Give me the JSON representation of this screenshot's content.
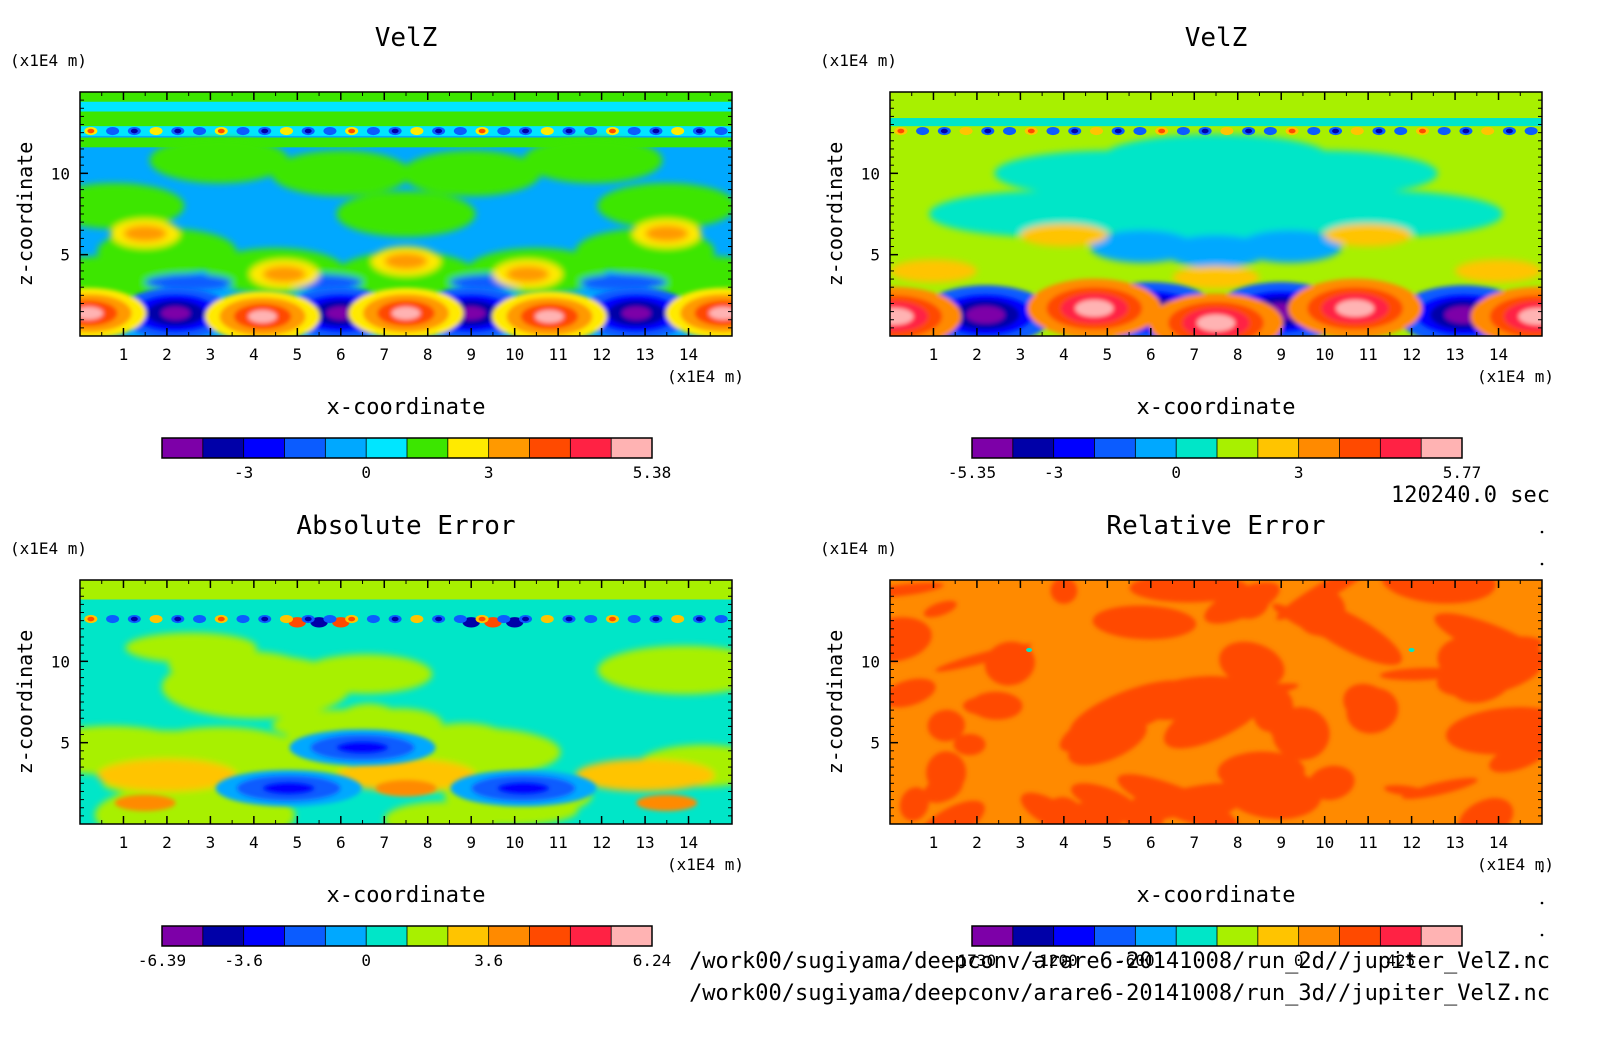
{
  "time_label": "120240.0 sec",
  "file_paths": [
    "/work00/sugiyama/deepconv/arare6-20141008/run_2d//jupiter_VelZ.nc",
    "/work00/sugiyama/deepconv/arare6-20141008/run_3d//jupiter_VelZ.nc"
  ],
  "chart_data": [
    {
      "type": "heatmap",
      "title": "VelZ",
      "xlabel": "x-coordinate",
      "ylabel": "z-coordinate",
      "x_unit": "(x1E4 m)",
      "y_unit": "(x1E4 m)",
      "xlim": [
        0,
        15
      ],
      "ylim": [
        0,
        15
      ],
      "xticks": [
        "1",
        "2",
        "3",
        "4",
        "5",
        "6",
        "7",
        "8",
        "9",
        "10",
        "11",
        "12",
        "13",
        "14"
      ],
      "yticks": [
        "5",
        "10"
      ],
      "colorbar": {
        "colors": [
          "#7d00a8",
          "#0000a8",
          "#0000ff",
          "#0b5cff",
          "#00a8ff",
          "#00e6ff",
          "#3ce600",
          "#ffea00",
          "#ff9900",
          "#ff4a00",
          "#ff2244",
          "#ffb3b3"
        ],
        "tick_labels": [
          {
            "text": "-3",
            "index": 2
          },
          {
            "text": "0",
            "index": 5
          },
          {
            "text": "3",
            "index": 8
          },
          {
            "text": "5.38",
            "index": 12
          }
        ]
      }
    },
    {
      "type": "heatmap",
      "title": "VelZ",
      "xlabel": "x-coordinate",
      "ylabel": "z-coordinate",
      "x_unit": "(x1E4 m)",
      "y_unit": "(x1E4 m)",
      "xlim": [
        0,
        15
      ],
      "ylim": [
        0,
        15
      ],
      "xticks": [
        "1",
        "2",
        "3",
        "4",
        "5",
        "6",
        "7",
        "8",
        "9",
        "10",
        "11",
        "12",
        "13",
        "14"
      ],
      "yticks": [
        "5",
        "10"
      ],
      "colorbar": {
        "colors": [
          "#7d00a8",
          "#0000a8",
          "#0000ff",
          "#0b5cff",
          "#00a8ff",
          "#00e6c8",
          "#a8f000",
          "#ffc400",
          "#ff8a00",
          "#ff4a00",
          "#ff2244",
          "#ffb3b3"
        ],
        "tick_labels": [
          {
            "text": "-5.35",
            "index": 0
          },
          {
            "text": "-3",
            "index": 2
          },
          {
            "text": "0",
            "index": 5
          },
          {
            "text": "3",
            "index": 8
          },
          {
            "text": "5.77",
            "index": 12
          }
        ]
      }
    },
    {
      "type": "heatmap",
      "title": "Absolute Error",
      "xlabel": "x-coordinate",
      "ylabel": "z-coordinate",
      "x_unit": "(x1E4 m)",
      "y_unit": "(x1E4 m)",
      "xlim": [
        0,
        15
      ],
      "ylim": [
        0,
        15
      ],
      "xticks": [
        "1",
        "2",
        "3",
        "4",
        "5",
        "6",
        "7",
        "8",
        "9",
        "10",
        "11",
        "12",
        "13",
        "14"
      ],
      "yticks": [
        "5",
        "10"
      ],
      "colorbar": {
        "colors": [
          "#7d00a8",
          "#0000a8",
          "#0000ff",
          "#0b5cff",
          "#00a8ff",
          "#00e6c8",
          "#a8f000",
          "#ffc400",
          "#ff8a00",
          "#ff4a00",
          "#ff2244",
          "#ffb3b3"
        ],
        "tick_labels": [
          {
            "text": "-6.39",
            "index": 0
          },
          {
            "text": "-3.6",
            "index": 2
          },
          {
            "text": "0",
            "index": 5
          },
          {
            "text": "3.6",
            "index": 8
          },
          {
            "text": "6.24",
            "index": 12
          }
        ]
      }
    },
    {
      "type": "heatmap",
      "title": "Relative Error",
      "xlabel": "x-coordinate",
      "ylabel": "z-coordinate",
      "x_unit": "(x1E4 m)",
      "y_unit": "(x1E4 m)",
      "xlim": [
        0,
        15
      ],
      "ylim": [
        0,
        15
      ],
      "xticks": [
        "1",
        "2",
        "3",
        "4",
        "5",
        "6",
        "7",
        "8",
        "9",
        "10",
        "11",
        "12",
        "13",
        "14"
      ],
      "yticks": [
        "5",
        "10"
      ],
      "colorbar": {
        "colors": [
          "#7d00a8",
          "#0000a8",
          "#0000ff",
          "#0b5cff",
          "#00a8ff",
          "#00e6c8",
          "#a8f000",
          "#ffc400",
          "#ff8a00",
          "#ff4a00",
          "#ff2244",
          "#ffb3b3"
        ],
        "tick_labels": [
          {
            "text": "-1730",
            "index": 0
          },
          {
            "text": "-1200",
            "index": 2
          },
          {
            "text": "-600",
            "index": 4
          },
          {
            "text": "0",
            "index": 8
          },
          {
            "text": "425",
            "index": 10.5
          }
        ]
      }
    }
  ]
}
